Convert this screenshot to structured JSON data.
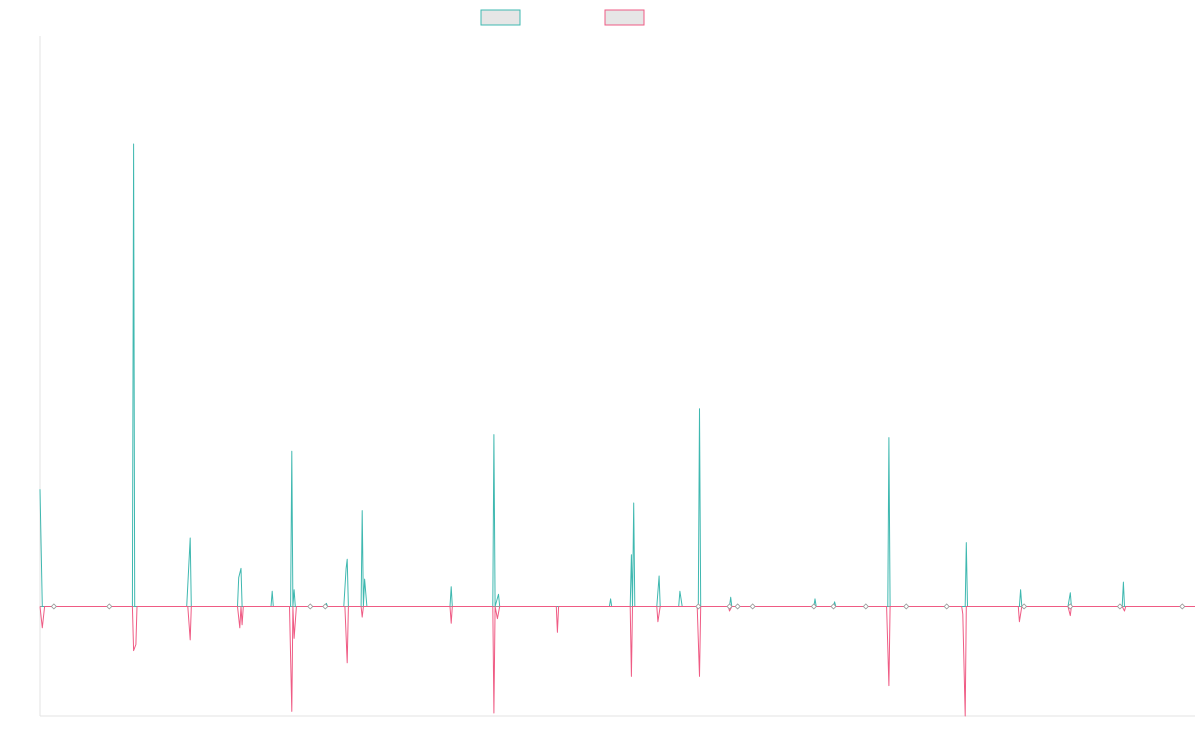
{
  "colors": {
    "series_up": "#3fb8b0",
    "series_down": "#ef5b84",
    "legend_fill": "#e6e6e6",
    "axis": "#e3e3e3",
    "zero_line": "#999999"
  },
  "chart_data": {
    "type": "line",
    "title": "",
    "xlabel": "",
    "ylabel": "",
    "grid": false,
    "legend": {
      "position": "top-center"
    },
    "xlim": [
      0,
      1
    ],
    "ylim": [
      -0.72,
      3.75
    ],
    "series": [
      {
        "color_key": "series_up",
        "points": [
          [
            0.0,
            0.77
          ],
          [
            0.002,
            0.0
          ],
          [
            0.08,
            0.0
          ],
          [
            0.081,
            3.04
          ],
          [
            0.082,
            0.0
          ],
          [
            0.127,
            0.0
          ],
          [
            0.13,
            0.45
          ],
          [
            0.131,
            0.0
          ],
          [
            0.171,
            0.0
          ],
          [
            0.172,
            0.19
          ],
          [
            0.174,
            0.25
          ],
          [
            0.175,
            0.0
          ],
          [
            0.2,
            0.0
          ],
          [
            0.201,
            0.1
          ],
          [
            0.202,
            0.0
          ],
          [
            0.217,
            0.0
          ],
          [
            0.218,
            1.02
          ],
          [
            0.219,
            0.0
          ],
          [
            0.22,
            0.11
          ],
          [
            0.221,
            0.0
          ],
          [
            0.247,
            0.0
          ],
          [
            0.248,
            0.02
          ],
          [
            0.249,
            0.0
          ],
          [
            0.263,
            0.0
          ],
          [
            0.265,
            0.25
          ],
          [
            0.266,
            0.31
          ],
          [
            0.267,
            0.0
          ],
          [
            0.278,
            0.0
          ],
          [
            0.279,
            0.63
          ],
          [
            0.28,
            0.0
          ],
          [
            0.281,
            0.18
          ],
          [
            0.283,
            0.0
          ],
          [
            0.355,
            0.0
          ],
          [
            0.356,
            0.13
          ],
          [
            0.357,
            0.0
          ],
          [
            0.392,
            0.0
          ],
          [
            0.393,
            1.13
          ],
          [
            0.394,
            0.0
          ],
          [
            0.397,
            0.08
          ],
          [
            0.398,
            0.0
          ],
          [
            0.493,
            0.0
          ],
          [
            0.494,
            0.05
          ],
          [
            0.495,
            0.0
          ],
          [
            0.511,
            0.0
          ],
          [
            0.512,
            0.34
          ],
          [
            0.513,
            0.0
          ],
          [
            0.514,
            0.68
          ],
          [
            0.515,
            0.0
          ],
          [
            0.534,
            0.0
          ],
          [
            0.536,
            0.2
          ],
          [
            0.537,
            0.0
          ],
          [
            0.553,
            0.0
          ],
          [
            0.554,
            0.1
          ],
          [
            0.556,
            0.0
          ],
          [
            0.57,
            0.0
          ],
          [
            0.571,
            1.3
          ],
          [
            0.572,
            0.0
          ],
          [
            0.597,
            0.0
          ],
          [
            0.598,
            0.06
          ],
          [
            0.599,
            0.0
          ],
          [
            0.67,
            0.0
          ],
          [
            0.671,
            0.05
          ],
          [
            0.672,
            0.0
          ],
          [
            0.687,
            0.0
          ],
          [
            0.688,
            0.03
          ],
          [
            0.689,
            0.0
          ],
          [
            0.734,
            0.0
          ],
          [
            0.735,
            1.11
          ],
          [
            0.736,
            0.0
          ],
          [
            0.801,
            0.0
          ],
          [
            0.802,
            0.42
          ],
          [
            0.803,
            0.0
          ],
          [
            0.848,
            0.0
          ],
          [
            0.849,
            0.11
          ],
          [
            0.85,
            0.0
          ],
          [
            0.89,
            0.0
          ],
          [
            0.892,
            0.09
          ],
          [
            0.893,
            0.0
          ],
          [
            0.937,
            0.0
          ],
          [
            0.938,
            0.16
          ],
          [
            0.939,
            0.0
          ],
          [
            1.0,
            0.0
          ]
        ]
      },
      {
        "color_key": "series_down",
        "points": [
          [
            0.0,
            0.0
          ],
          [
            0.002,
            -0.14
          ],
          [
            0.004,
            0.0
          ],
          [
            0.08,
            0.0
          ],
          [
            0.081,
            -0.29
          ],
          [
            0.083,
            -0.25
          ],
          [
            0.084,
            0.0
          ],
          [
            0.128,
            0.0
          ],
          [
            0.13,
            -0.22
          ],
          [
            0.131,
            0.0
          ],
          [
            0.171,
            0.0
          ],
          [
            0.173,
            -0.14
          ],
          [
            0.174,
            0.0
          ],
          [
            0.175,
            -0.12
          ],
          [
            0.176,
            0.0
          ],
          [
            0.216,
            0.0
          ],
          [
            0.218,
            -0.69
          ],
          [
            0.219,
            0.0
          ],
          [
            0.22,
            -0.21
          ],
          [
            0.222,
            0.0
          ],
          [
            0.264,
            0.0
          ],
          [
            0.266,
            -0.37
          ],
          [
            0.267,
            0.0
          ],
          [
            0.278,
            0.0
          ],
          [
            0.279,
            -0.07
          ],
          [
            0.28,
            0.0
          ],
          [
            0.355,
            0.0
          ],
          [
            0.356,
            -0.11
          ],
          [
            0.357,
            0.0
          ],
          [
            0.392,
            0.0
          ],
          [
            0.393,
            -0.7
          ],
          [
            0.394,
            0.0
          ],
          [
            0.396,
            -0.08
          ],
          [
            0.398,
            0.0
          ],
          [
            0.447,
            0.0
          ],
          [
            0.448,
            -0.17
          ],
          [
            0.449,
            0.0
          ],
          [
            0.511,
            0.0
          ],
          [
            0.512,
            -0.46
          ],
          [
            0.513,
            0.0
          ],
          [
            0.534,
            0.0
          ],
          [
            0.535,
            -0.1
          ],
          [
            0.537,
            0.0
          ],
          [
            0.569,
            0.0
          ],
          [
            0.571,
            -0.46
          ],
          [
            0.572,
            0.0
          ],
          [
            0.596,
            0.0
          ],
          [
            0.597,
            -0.03
          ],
          [
            0.599,
            0.0
          ],
          [
            0.733,
            0.0
          ],
          [
            0.735,
            -0.52
          ],
          [
            0.736,
            0.0
          ],
          [
            0.798,
            0.0
          ],
          [
            0.799,
            -0.05
          ],
          [
            0.801,
            -0.72
          ],
          [
            0.802,
            0.0
          ],
          [
            0.847,
            0.0
          ],
          [
            0.848,
            -0.1
          ],
          [
            0.85,
            0.0
          ],
          [
            0.89,
            0.0
          ],
          [
            0.892,
            -0.06
          ],
          [
            0.893,
            0.0
          ],
          [
            0.937,
            0.0
          ],
          [
            0.939,
            -0.03
          ],
          [
            0.94,
            0.0
          ],
          [
            1.0,
            0.0
          ]
        ]
      }
    ],
    "markers": [
      0.012,
      0.06,
      0.234,
      0.247,
      0.57,
      0.597,
      0.604,
      0.617,
      0.67,
      0.687,
      0.715,
      0.75,
      0.785,
      0.852,
      0.892,
      0.935,
      0.989
    ]
  }
}
